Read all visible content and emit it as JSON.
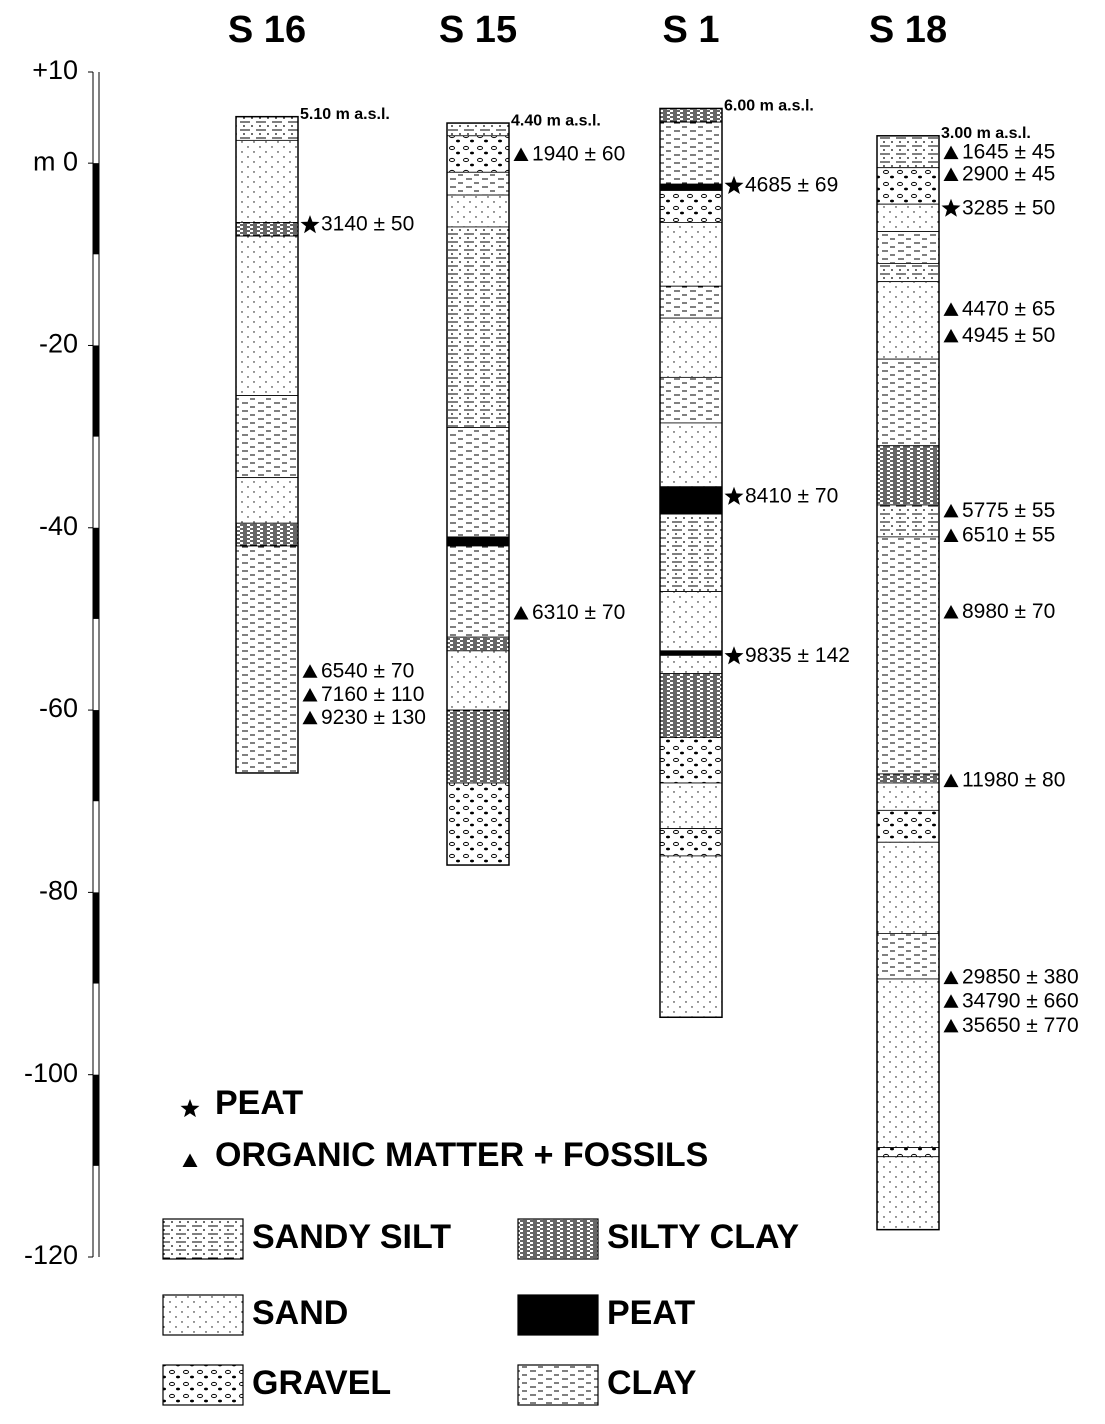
{
  "axis": {
    "ticks": [
      {
        "value": 10,
        "label": "+10"
      },
      {
        "value": 0,
        "label": "m 0"
      },
      -20,
      -40,
      -60,
      -80,
      -100,
      -120
    ],
    "range": [
      10,
      -120
    ]
  },
  "columns": [
    {
      "name": "S 16",
      "elevation": "5.10 m a.s.l.",
      "top": 5.1,
      "bottom": -66.9,
      "layers": [
        {
          "lith": "SANDY SILT",
          "top": 5.1,
          "bottom": 2.5
        },
        {
          "lith": "SAND",
          "top": 2.5,
          "bottom": -6.5
        },
        {
          "lith": "SILTY CLAY",
          "top": -6.5,
          "bottom": -8
        },
        {
          "lith": "SAND",
          "top": -8,
          "bottom": -25.5
        },
        {
          "lith": "CLAY",
          "top": -25.5,
          "bottom": -34.5
        },
        {
          "lith": "SAND",
          "top": -34.5,
          "bottom": -39.5
        },
        {
          "lith": "SILTY CLAY",
          "top": -39.5,
          "bottom": -42
        },
        {
          "lith": "CLAY",
          "top": -42,
          "bottom": -66.9
        }
      ],
      "dates": [
        {
          "symbol": "PEAT",
          "label": "3140 ± 50",
          "depth": -6.8
        },
        {
          "symbol": "ORGANIC MATTER + FOSSILS",
          "label": "6540 ± 70",
          "depth": -55.8
        },
        {
          "symbol": "ORGANIC MATTER + FOSSILS",
          "label": "7160 ± 110",
          "depth": -58.4
        },
        {
          "symbol": "ORGANIC MATTER + FOSSILS",
          "label": "9230 ± 130",
          "depth": -60.9
        }
      ]
    },
    {
      "name": "S 15",
      "elevation": "4.40 m a.s.l.",
      "top": 4.4,
      "bottom": -77,
      "layers": [
        {
          "lith": "SANDY SILT",
          "top": 4.4,
          "bottom": 3
        },
        {
          "lith": "GRAVEL",
          "top": 3,
          "bottom": -1
        },
        {
          "lith": "CLAY",
          "top": -1,
          "bottom": -3.5
        },
        {
          "lith": "SAND",
          "top": -3.5,
          "bottom": -7
        },
        {
          "lith": "SANDY SILT",
          "top": -7,
          "bottom": -29
        },
        {
          "lith": "CLAY",
          "top": -29,
          "bottom": -41
        },
        {
          "lith": "PEAT",
          "top": -41,
          "bottom": -42
        },
        {
          "lith": "CLAY",
          "top": -42,
          "bottom": -52
        },
        {
          "lith": "SILTY CLAY",
          "top": -52,
          "bottom": -53.5
        },
        {
          "lith": "SAND",
          "top": -53.5,
          "bottom": -60
        },
        {
          "lith": "SILTY CLAY",
          "top": -60,
          "bottom": -68
        },
        {
          "lith": "GRAVEL",
          "top": -68,
          "bottom": -77
        }
      ],
      "dates": [
        {
          "symbol": "ORGANIC MATTER + FOSSILS",
          "label": "1940 ± 60",
          "depth": 0.9
        },
        {
          "symbol": "ORGANIC MATTER + FOSSILS",
          "label": "6310 ± 70",
          "depth": -49.4
        }
      ]
    },
    {
      "name": "S 1",
      "elevation": "6.00 m a.s.l.",
      "top": 6,
      "bottom": -93.7,
      "layers": [
        {
          "lith": "SILTY CLAY",
          "top": 6,
          "bottom": 4.5
        },
        {
          "lith": "CLAY",
          "top": 4.5,
          "bottom": -2.3
        },
        {
          "lith": "PEAT",
          "top": -2.3,
          "bottom": -3
        },
        {
          "lith": "GRAVEL",
          "top": -3,
          "bottom": -6.5
        },
        {
          "lith": "SAND",
          "top": -6.5,
          "bottom": -13.5
        },
        {
          "lith": "CLAY",
          "top": -13.5,
          "bottom": -17
        },
        {
          "lith": "SAND",
          "top": -17,
          "bottom": -23.5
        },
        {
          "lith": "CLAY",
          "top": -23.5,
          "bottom": -28.5
        },
        {
          "lith": "SAND",
          "top": -28.5,
          "bottom": -35.5
        },
        {
          "lith": "PEAT",
          "top": -35.5,
          "bottom": -38.5
        },
        {
          "lith": "SANDY SILT",
          "top": -38.5,
          "bottom": -47
        },
        {
          "lith": "SAND",
          "top": -47,
          "bottom": -53.5
        },
        {
          "lith": "PEAT",
          "top": -53.5,
          "bottom": -54
        },
        {
          "lith": "SAND",
          "top": -54,
          "bottom": -56
        },
        {
          "lith": "SILTY CLAY",
          "top": -56,
          "bottom": -63
        },
        {
          "lith": "GRAVEL",
          "top": -63,
          "bottom": -68
        },
        {
          "lith": "SAND",
          "top": -68,
          "bottom": -73
        },
        {
          "lith": "GRAVEL",
          "top": -73,
          "bottom": -76
        },
        {
          "lith": "SAND",
          "top": -76,
          "bottom": -93.7
        }
      ],
      "dates": [
        {
          "symbol": "PEAT",
          "label": "4685 ± 69",
          "depth": -2.5
        },
        {
          "symbol": "PEAT",
          "label": "8410 ± 70",
          "depth": -36.6
        },
        {
          "symbol": "PEAT",
          "label": "9835 ± 142",
          "depth": -54.1
        }
      ]
    },
    {
      "name": "S 18",
      "elevation": "3.00 m a.s.l.",
      "top": 3,
      "bottom": -117,
      "layers": [
        {
          "lith": "SANDY SILT",
          "top": 3,
          "bottom": -0.5
        },
        {
          "lith": "GRAVEL",
          "top": -0.5,
          "bottom": -4.5
        },
        {
          "lith": "SAND",
          "top": -4.5,
          "bottom": -7.5
        },
        {
          "lith": "CLAY",
          "top": -7.5,
          "bottom": -11
        },
        {
          "lith": "SANDY SILT",
          "top": -11,
          "bottom": -13
        },
        {
          "lith": "SAND",
          "top": -13,
          "bottom": -21.5
        },
        {
          "lith": "CLAY",
          "top": -21.5,
          "bottom": -31
        },
        {
          "lith": "SILTY CLAY",
          "top": -31,
          "bottom": -37.5
        },
        {
          "lith": "SANDY SILT",
          "top": -37.5,
          "bottom": -41
        },
        {
          "lith": "CLAY",
          "top": -41,
          "bottom": -67
        },
        {
          "lith": "SILTY CLAY",
          "top": -67,
          "bottom": -68
        },
        {
          "lith": "SAND",
          "top": -68,
          "bottom": -71
        },
        {
          "lith": "GRAVEL",
          "top": -71,
          "bottom": -74.5
        },
        {
          "lith": "SAND",
          "top": -74.5,
          "bottom": -84.5
        },
        {
          "lith": "CLAY",
          "top": -84.5,
          "bottom": -89.5
        },
        {
          "lith": "SAND",
          "top": -89.5,
          "bottom": -108
        },
        {
          "lith": "GRAVEL",
          "top": -108,
          "bottom": -109
        },
        {
          "lith": "SAND",
          "top": -109,
          "bottom": -117
        }
      ],
      "dates": [
        {
          "symbol": "ORGANIC MATTER + FOSSILS",
          "label": "1645 ± 45",
          "depth": 1.1
        },
        {
          "symbol": "ORGANIC MATTER + FOSSILS",
          "label": "2900 ± 45",
          "depth": -1.3
        },
        {
          "symbol": "PEAT",
          "label": "3285 ± 50",
          "depth": -5
        },
        {
          "symbol": "ORGANIC MATTER + FOSSILS",
          "label": "4470 ± 65",
          "depth": -16.1
        },
        {
          "symbol": "ORGANIC MATTER + FOSSILS",
          "label": "4945 ± 50",
          "depth": -19
        },
        {
          "symbol": "ORGANIC MATTER + FOSSILS",
          "label": "5775 ± 55",
          "depth": -38.2
        },
        {
          "symbol": "ORGANIC MATTER + FOSSILS",
          "label": "6510 ± 55",
          "depth": -40.9
        },
        {
          "symbol": "ORGANIC MATTER + FOSSILS",
          "label": "8980 ± 70",
          "depth": -49.3
        },
        {
          "symbol": "ORGANIC MATTER + FOSSILS",
          "label": "11980 ± 80",
          "depth": -67.8
        },
        {
          "symbol": "ORGANIC MATTER + FOSSILS",
          "label": "29850 ± 380",
          "depth": -89.4
        },
        {
          "symbol": "ORGANIC MATTER + FOSSILS",
          "label": "34790 ± 660",
          "depth": -92
        },
        {
          "symbol": "ORGANIC MATTER + FOSSILS",
          "label": "35650 ± 770",
          "depth": -94.7
        }
      ]
    }
  ],
  "legend": {
    "symbols": [
      "PEAT",
      "ORGANIC MATTER + FOSSILS"
    ],
    "lithologies": [
      "SANDY SILT",
      "SAND",
      "GRAVEL",
      "SILTY CLAY",
      "PEAT",
      "CLAY"
    ]
  }
}
